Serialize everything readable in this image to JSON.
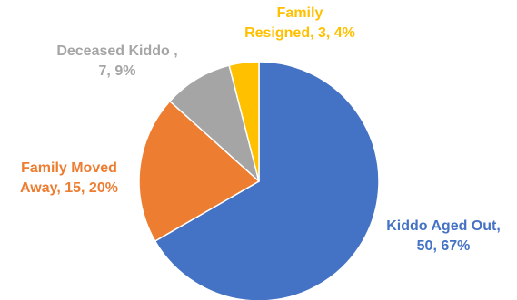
{
  "chart_data": {
    "type": "pie",
    "slices": [
      {
        "name": "Kiddo Aged Out",
        "value": 50,
        "percent": "67%",
        "color": "#4472C4",
        "label_line1": "Kiddo Aged Out,",
        "label_line2": "50, 67%"
      },
      {
        "name": "Family Moved Away",
        "value": 15,
        "percent": "20%",
        "color": "#ED7D31",
        "label_line1": "Family Moved",
        "label_line2": "Away, 15, 20%"
      },
      {
        "name": "Deceased Kiddo",
        "value": 7,
        "percent": "9%",
        "color": "#A5A5A5",
        "label_line1": "Deceased Kiddo ,",
        "label_line2": "7, 9%"
      },
      {
        "name": "Family Resigned",
        "value": 3,
        "percent": "4%",
        "color": "#FFC000",
        "label_line1": "Family",
        "label_line2": "Resigned, 3, 4%"
      }
    ],
    "start_angle_deg": 0,
    "direction": "clockwise",
    "legend": "none"
  }
}
